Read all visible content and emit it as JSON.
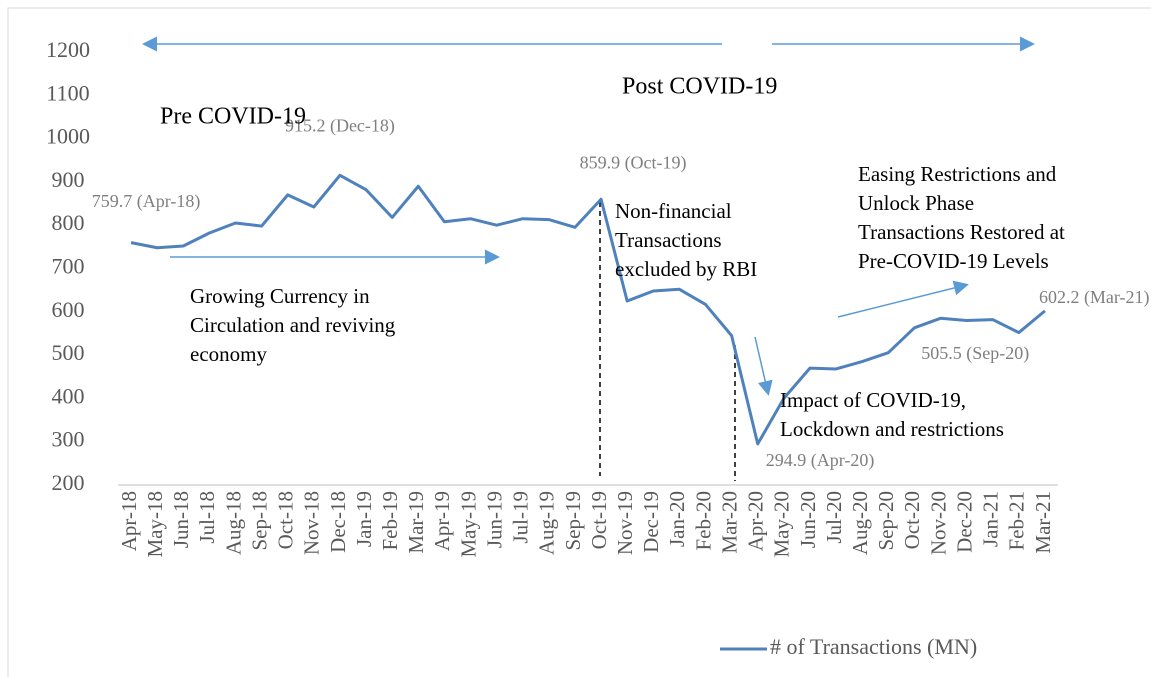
{
  "chart_data": {
    "type": "line",
    "categories": [
      "Apr-18",
      "May-18",
      "Jun-18",
      "Jul-18",
      "Aug-18",
      "Sep-18",
      "Oct-18",
      "Nov-18",
      "Dec-18",
      "Jan-19",
      "Feb-19",
      "Mar-19",
      "Apr-19",
      "May-19",
      "Jun-19",
      "Jul-19",
      "Aug-19",
      "Sep-19",
      "Oct-19",
      "Nov-19",
      "Dec-19",
      "Jan-20",
      "Feb-20",
      "Mar-20",
      "Apr-20",
      "May-20",
      "Jun-20",
      "Jul-20",
      "Aug-20",
      "Sep-20",
      "Oct-20",
      "Nov-20",
      "Dec-20",
      "Jan-21",
      "Feb-21",
      "Mar-21"
    ],
    "series": [
      {
        "name": "# of Transactions (MN)",
        "color": "#4f81bd",
        "values": [
          759.7,
          748,
          752,
          782,
          805,
          798,
          870,
          842,
          915.2,
          882,
          818,
          890,
          808,
          815,
          800,
          815,
          813,
          795,
          859.9,
          625,
          648,
          652,
          617,
          545,
          294.9,
          400,
          470,
          468,
          485,
          505.5,
          563,
          585,
          580,
          582,
          552,
          602.2
        ],
        "value_labels": [
          "759.7 (Apr-18)",
          null,
          null,
          null,
          null,
          null,
          null,
          null,
          "915.2 (Dec-18)",
          null,
          null,
          null,
          null,
          null,
          null,
          null,
          null,
          null,
          "859.9 (Oct-19)",
          null,
          null,
          null,
          null,
          null,
          "294.9 (Apr-20)",
          null,
          null,
          null,
          null,
          "505.5 (Sep-20)",
          null,
          null,
          null,
          null,
          null,
          "602.2 (Mar-21)"
        ]
      }
    ],
    "ylim": [
      200,
      1200
    ],
    "yticks": [
      200,
      300,
      400,
      500,
      600,
      700,
      800,
      900,
      1000,
      1100,
      1200
    ],
    "grid": false,
    "legend": "bottom",
    "annotations": [
      {
        "lines": [
          "Pre COVID-19"
        ]
      },
      {
        "lines": [
          "Post COVID-19"
        ]
      },
      {
        "lines": [
          "Growing Currency in",
          "Circulation and reviving",
          "economy"
        ]
      },
      {
        "lines": [
          "Non-financial",
          "Transactions",
          "excluded by RBI"
        ]
      },
      {
        "lines": [
          "Impact of COVID-19,",
          "Lockdown and restrictions"
        ]
      },
      {
        "lines": [
          "Easing Restrictions and",
          "Unlock Phase",
          "Transactions Restored at",
          "Pre-COVID-19 Levels"
        ]
      }
    ]
  }
}
